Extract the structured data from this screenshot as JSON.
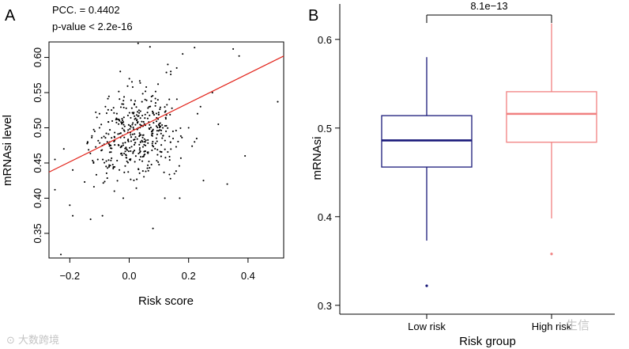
{
  "colors": {
    "points": "#000000",
    "fit_line": "#e2231a",
    "low_risk": "#1a1a7a",
    "high_risk": "#f08080"
  },
  "chart_data": [
    {
      "type": "scatter",
      "panel": "A",
      "annotations": [
        "PCC. = 0.4402",
        "p-value < 2.2e-16"
      ],
      "xlabel": "Risk score",
      "ylabel": "mRNAsi level",
      "xlim": [
        -0.27,
        0.52
      ],
      "ylim": [
        0.315,
        0.622
      ],
      "xticks": [
        -0.2,
        0.0,
        0.2,
        0.4
      ],
      "xtick_labels": [
        "−0.2",
        "0.0",
        "0.2",
        "0.4"
      ],
      "yticks": [
        0.35,
        0.4,
        0.45,
        0.5,
        0.55,
        0.6
      ],
      "ytick_labels": [
        "0.35",
        "0.40",
        "0.45",
        "0.50",
        "0.55",
        "0.60"
      ],
      "fit_line": {
        "x": [
          -0.27,
          0.52
        ],
        "y": [
          0.437,
          0.602
        ]
      },
      "points_summary": {
        "n": 420,
        "x_center": 0.02,
        "x_sd": 0.075,
        "y_center": 0.49,
        "y_sd": 0.035,
        "note": "dense cloud; values approximated from figure"
      },
      "points": [
        [
          -0.23,
          0.32
        ],
        [
          -0.25,
          0.412
        ],
        [
          -0.25,
          0.455
        ],
        [
          -0.19,
          0.375
        ],
        [
          -0.19,
          0.44
        ],
        [
          -0.2,
          0.39
        ],
        [
          -0.22,
          0.47
        ],
        [
          -0.09,
          0.375
        ],
        [
          -0.13,
          0.37
        ],
        [
          -0.15,
          0.423
        ],
        [
          -0.14,
          0.48
        ],
        [
          -0.1,
          0.5
        ],
        [
          -0.1,
          0.52
        ],
        [
          -0.03,
          0.58
        ],
        [
          0.03,
          0.62
        ],
        [
          0.07,
          0.615
        ],
        [
          0.18,
          0.605
        ],
        [
          0.22,
          0.614
        ],
        [
          0.35,
          0.612
        ],
        [
          0.37,
          0.602
        ],
        [
          0.5,
          0.537
        ],
        [
          0.28,
          0.55
        ],
        [
          0.3,
          0.505
        ],
        [
          0.39,
          0.46
        ],
        [
          0.33,
          0.42
        ],
        [
          0.25,
          0.425
        ],
        [
          0.17,
          0.4
        ],
        [
          0.12,
          0.4
        ],
        [
          0.08,
          0.357
        ],
        [
          -0.05,
          0.41
        ],
        [
          -0.02,
          0.4
        ],
        [
          0.22,
          0.48
        ],
        [
          0.2,
          0.5
        ],
        [
          0.23,
          0.52
        ],
        [
          0.24,
          0.53
        ],
        [
          0.14,
          0.58
        ],
        [
          0.13,
          0.59
        ],
        [
          0.16,
          0.585
        ],
        [
          -0.08,
          0.53
        ],
        [
          -0.12,
          0.45
        ]
      ]
    },
    {
      "type": "box",
      "panel": "B",
      "xlabel": "Risk group",
      "ylabel": "mRNAsi",
      "ylim": [
        0.29,
        0.64
      ],
      "yticks": [
        0.3,
        0.4,
        0.5,
        0.6
      ],
      "ytick_labels": [
        "0.3",
        "0.4",
        "0.5",
        "0.6"
      ],
      "categories": [
        "Low risk",
        "High risk"
      ],
      "boxes": [
        {
          "name": "Low risk",
          "whisker_low": 0.373,
          "q1": 0.456,
          "median": 0.486,
          "q3": 0.514,
          "whisker_high": 0.58,
          "outliers": [
            0.322
          ]
        },
        {
          "name": "High risk",
          "whisker_low": 0.398,
          "q1": 0.484,
          "median": 0.516,
          "q3": 0.541,
          "whisker_high": 0.618,
          "outliers": [
            0.358
          ]
        }
      ],
      "significance": {
        "label": "8.1e−13",
        "y": 0.632
      }
    }
  ],
  "watermarks": [
    "大数跨境",
    "生信"
  ]
}
